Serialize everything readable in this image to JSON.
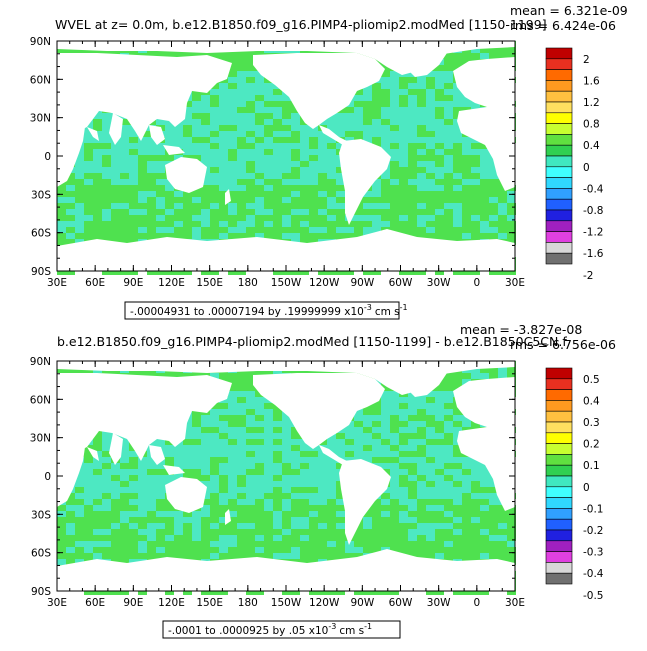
{
  "chart_data": [
    {
      "type": "heatmap",
      "title": "WVEL at z=    0.0m, b.e12.B1850.f09_g16.PIMP4-pliomip2.modMed [1150-1199]",
      "stat_mean": "mean = 6.321e-09",
      "stat_rms": "rms = 6.424e-06",
      "range_note": "-.00004931 to .00007194 by .19999999 x10",
      "range_exp": "-3",
      "range_unit": "cm s",
      "range_unit_exp": "-1",
      "xlabels": [
        "30E",
        "60E",
        "90E",
        "120E",
        "150E",
        "180",
        "150W",
        "120W",
        "90W",
        "60W",
        "30W",
        "0",
        "30E"
      ],
      "ylabels": [
        "90N",
        "60N",
        "30N",
        "0",
        "30S",
        "60S",
        "90S"
      ],
      "colorbar_labels": [
        "2",
        "1.6",
        "1.2",
        "0.8",
        "0.4",
        "0",
        "-0.4",
        "-0.8",
        "-1.2",
        "-1.6",
        "-2"
      ],
      "colorbar_min": -2,
      "colorbar_max": 2,
      "colorbar_step": 0.2
    },
    {
      "type": "heatmap",
      "title": "b.e12.B1850.f09_g16.PIMP4-pliomip2.modMed [1150-1199] - b.e12.B1850C5CN.f",
      "stat_mean": "mean = -3.827e-08",
      "stat_rms": "rms = 6.756e-06",
      "range_note": "-.0001 to .0000925 by .05 x10",
      "range_exp": "-3",
      "range_unit": "cm s",
      "range_unit_exp": "-1",
      "xlabels": [
        "30E",
        "60E",
        "90E",
        "120E",
        "150E",
        "180",
        "150W",
        "120W",
        "90W",
        "60W",
        "30W",
        "0",
        "30E"
      ],
      "ylabels": [
        "90N",
        "60N",
        "30N",
        "0",
        "30S",
        "60S",
        "90S"
      ],
      "colorbar_labels": [
        "0.5",
        "0.4",
        "0.3",
        "0.2",
        "0.1",
        "0",
        "-0.1",
        "-0.2",
        "-0.3",
        "-0.4",
        "-0.5"
      ],
      "colorbar_min": -0.5,
      "colorbar_max": 0.5,
      "colorbar_step": 0.05
    }
  ],
  "colors": {
    "palette_top_to_bottom": [
      "#c00000",
      "#e83020",
      "#ff6a00",
      "#ff9a20",
      "#ffc040",
      "#ffe060",
      "#ffff00",
      "#c8ff30",
      "#60e040",
      "#30d050",
      "#40e8c0",
      "#40ffff",
      "#30d8ff",
      "#30a0ff",
      "#2060ff",
      "#2020e0",
      "#a020c0",
      "#e040e0",
      "#d8d8d8",
      "#707070"
    ],
    "ocean_green": "#4fe14f",
    "ocean_cyan": "#4de8c2",
    "land": "#ffffff"
  }
}
